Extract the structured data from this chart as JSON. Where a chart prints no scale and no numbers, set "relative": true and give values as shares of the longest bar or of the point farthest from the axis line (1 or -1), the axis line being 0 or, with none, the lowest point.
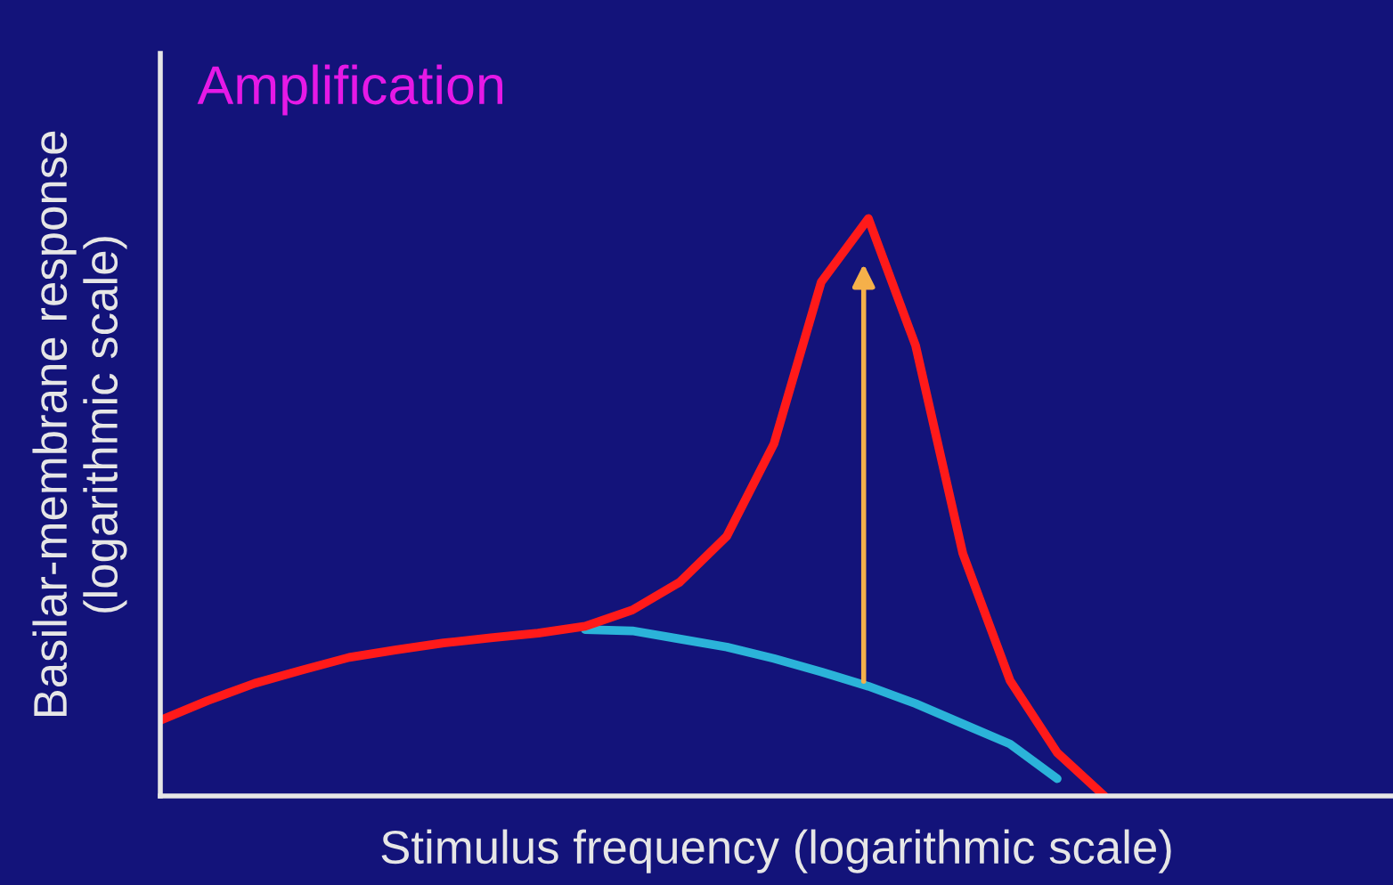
{
  "chart_data": {
    "type": "line",
    "title": "Amplification",
    "xlabel": "Stimulus frequency (logarithmic scale)",
    "ylabel": "Basilar-membrane response\n(logarithmic scale)",
    "relative": true,
    "legend": false,
    "grid": false,
    "marker": "none",
    "line_style": "solid",
    "categories": [
      null,
      null,
      null,
      null,
      null,
      null,
      null,
      null,
      null,
      null,
      null,
      null,
      null,
      null,
      null,
      null,
      null,
      null,
      null,
      null,
      null
    ],
    "series": [
      {
        "color": "#2bb3d9",
        "values": [
          null,
          null,
          null,
          null,
          null,
          null,
          null,
          null,
          null,
          0.288,
          0.286,
          0.272,
          0.258,
          0.238,
          0.215,
          0.19,
          0.16,
          0.125,
          0.09,
          0.03,
          null
        ]
      },
      {
        "color": "#ff1a1a",
        "values": [
          0.131,
          0.165,
          0.195,
          0.218,
          0.24,
          0.253,
          0.265,
          0.274,
          0.282,
          0.294,
          0.322,
          0.37,
          0.45,
          0.61,
          0.89,
          1.0,
          0.78,
          0.42,
          0.2,
          0.075,
          0
        ]
      }
    ]
  }
}
